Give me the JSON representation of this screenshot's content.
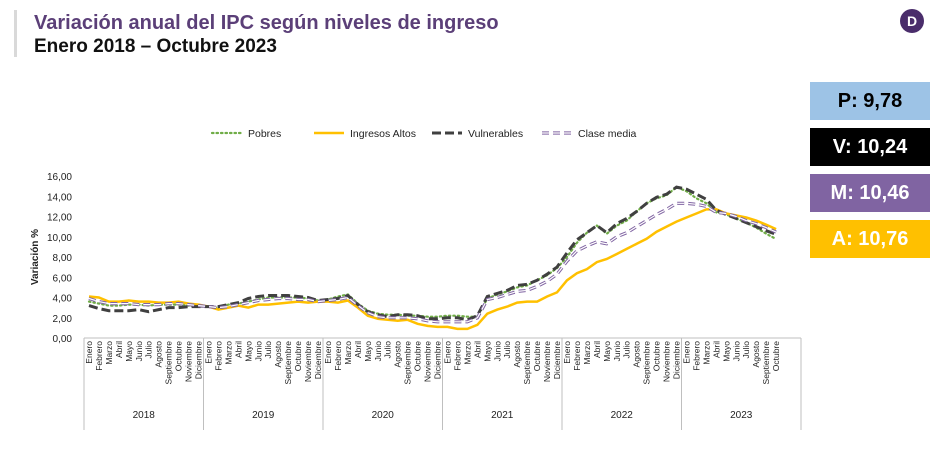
{
  "header": {
    "title": "Variación anual del IPC según niveles de ingreso",
    "subtitle": "Enero 2018 – Octubre 2023",
    "logo_glyph": "D"
  },
  "badges": [
    {
      "label": "P: 9,78",
      "bg": "#9dc3e6",
      "fg": "#000000"
    },
    {
      "label": "V: 10,24",
      "bg": "#000000",
      "fg": "#ffffff"
    },
    {
      "label": "M: 10,46",
      "bg": "#8064a2",
      "fg": "#ffffff"
    },
    {
      "label": "A: 10,76",
      "bg": "#ffc000",
      "fg": "#ffffff"
    }
  ],
  "chart_data": {
    "type": "line",
    "ylabel": "Variación %",
    "ylim": [
      0,
      16
    ],
    "y_ticks": [
      "0,00",
      "2,00",
      "4,00",
      "6,00",
      "8,00",
      "10,00",
      "12,00",
      "14,00",
      "16,00"
    ],
    "legend_position": "top",
    "months": [
      "Enero",
      "Febrero",
      "Marzo",
      "Abril",
      "Mayo",
      "Junio",
      "Julio",
      "Agosto",
      "Septiembre",
      "Octubre",
      "Noviembre",
      "Diciembre"
    ],
    "years": [
      "2018",
      "2019",
      "2020",
      "2021",
      "2022",
      "2023"
    ],
    "series": [
      {
        "name": "Pobres",
        "color": "#70ad47",
        "style": "dotted",
        "values": [
          3.6,
          3.4,
          3.2,
          3.2,
          3.3,
          3.3,
          3.2,
          3.3,
          3.3,
          3.3,
          3.2,
          3.1,
          3.1,
          3.0,
          3.3,
          3.4,
          3.6,
          3.8,
          4.0,
          4.0,
          4.0,
          4.0,
          3.9,
          3.7,
          3.8,
          4.1,
          4.3,
          3.4,
          2.7,
          2.4,
          2.3,
          2.3,
          2.2,
          2.2,
          2.1,
          2.1,
          2.2,
          2.2,
          2.1,
          2.1,
          3.9,
          4.3,
          4.6,
          5.0,
          5.2,
          5.7,
          6.2,
          6.9,
          8.0,
          9.4,
          10.4,
          11.1,
          10.3,
          11.1,
          11.6,
          12.5,
          13.3,
          13.8,
          14.1,
          14.9,
          14.5,
          13.8,
          13.3,
          12.4,
          12.2,
          11.8,
          11.4,
          10.9,
          10.3,
          9.78
        ]
      },
      {
        "name": "Ingresos Altos",
        "color": "#ffc000",
        "style": "solid",
        "values": [
          4.1,
          4.0,
          3.6,
          3.6,
          3.7,
          3.6,
          3.6,
          3.5,
          3.5,
          3.6,
          3.4,
          3.3,
          3.1,
          2.8,
          3.0,
          3.2,
          3.0,
          3.3,
          3.3,
          3.4,
          3.5,
          3.6,
          3.5,
          3.6,
          3.6,
          3.5,
          3.7,
          3.0,
          2.2,
          1.9,
          1.8,
          1.7,
          1.8,
          1.4,
          1.2,
          1.1,
          1.1,
          0.9,
          0.9,
          1.3,
          2.4,
          2.8,
          3.1,
          3.5,
          3.6,
          3.6,
          4.1,
          4.5,
          5.7,
          6.4,
          6.8,
          7.5,
          7.8,
          8.3,
          8.8,
          9.3,
          9.8,
          10.5,
          11.0,
          11.5,
          11.9,
          12.3,
          12.7,
          12.7,
          12.3,
          12.1,
          11.9,
          11.6,
          11.2,
          10.76
        ]
      },
      {
        "name": "Vulnerables",
        "color": "#404040",
        "style": "dashed",
        "values": [
          3.2,
          2.9,
          2.7,
          2.7,
          2.7,
          2.8,
          2.6,
          2.8,
          3.0,
          3.0,
          3.1,
          3.1,
          3.1,
          3.1,
          3.3,
          3.5,
          3.9,
          4.1,
          4.2,
          4.2,
          4.2,
          4.1,
          4.0,
          3.7,
          3.8,
          3.9,
          4.2,
          3.3,
          2.6,
          2.3,
          2.1,
          2.3,
          2.3,
          2.2,
          1.9,
          1.9,
          2.0,
          2.0,
          1.8,
          2.2,
          4.1,
          4.4,
          4.7,
          5.2,
          5.3,
          5.7,
          6.3,
          7.0,
          8.4,
          9.7,
          10.4,
          11.1,
          10.4,
          11.3,
          11.8,
          12.5,
          13.3,
          13.9,
          14.2,
          14.9,
          14.7,
          14.2,
          13.7,
          12.6,
          12.2,
          11.8,
          11.4,
          11.0,
          10.6,
          10.24
        ]
      },
      {
        "name": "Clase media",
        "color": "#8064a2",
        "style": "double-dash",
        "values": [
          3.9,
          3.6,
          3.4,
          3.4,
          3.4,
          3.3,
          3.3,
          3.3,
          3.4,
          3.4,
          3.3,
          3.2,
          3.1,
          3.0,
          3.1,
          3.3,
          3.5,
          3.7,
          3.8,
          3.9,
          3.9,
          3.8,
          3.8,
          3.6,
          3.7,
          3.8,
          4.0,
          3.2,
          2.5,
          2.1,
          2.0,
          2.0,
          2.0,
          1.9,
          1.7,
          1.6,
          1.6,
          1.6,
          1.6,
          2.0,
          3.8,
          4.0,
          4.3,
          4.6,
          4.7,
          5.1,
          5.6,
          6.3,
          7.6,
          8.6,
          9.1,
          9.5,
          9.3,
          10.0,
          10.4,
          11.0,
          11.6,
          12.2,
          12.7,
          13.3,
          13.3,
          13.2,
          13.0,
          12.4,
          12.3,
          12.0,
          11.6,
          11.3,
          10.9,
          10.46
        ]
      }
    ]
  }
}
